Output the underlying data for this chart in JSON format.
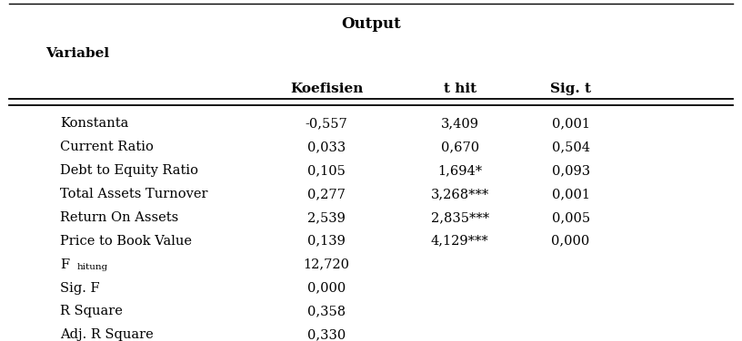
{
  "title": "Output",
  "col_header_label": "Variabel",
  "col_headers": [
    "Koefisien",
    "t hit",
    "Sig. t"
  ],
  "rows": [
    {
      "label": "Konstanta",
      "koef": "-0,557",
      "thit": "3,409",
      "sig": "0,001"
    },
    {
      "label": "Current Ratio",
      "koef": "0,033",
      "thit": "0,670",
      "sig": "0,504"
    },
    {
      "label": "Debt to Equity Ratio",
      "koef": "0,105",
      "thit": "1,694*",
      "sig": "0,093"
    },
    {
      "label": "Total Assets Turnover",
      "koef": "0,277",
      "thit": "3,268***",
      "sig": "0,001"
    },
    {
      "label": "Return On Assets",
      "koef": "2,539",
      "thit": "2,835***",
      "sig": "0,005"
    },
    {
      "label": "Price to Book Value",
      "koef": "0,139",
      "thit": "4,129***",
      "sig": "0,000"
    }
  ],
  "footer_rows": [
    {
      "label": "F_hitung",
      "koef": "12,720",
      "thit": "",
      "sig": ""
    },
    {
      "label": "Sig. F",
      "koef": "0,000",
      "thit": "",
      "sig": ""
    },
    {
      "label": "R Square",
      "koef": "0,358",
      "thit": "",
      "sig": ""
    },
    {
      "label": "Adj. R Square",
      "koef": "0,330",
      "thit": "",
      "sig": ""
    }
  ],
  "bg_color": "#ffffff",
  "text_color": "#000000",
  "font_size": 10.5,
  "header_font_size": 11,
  "title_font_size": 12
}
